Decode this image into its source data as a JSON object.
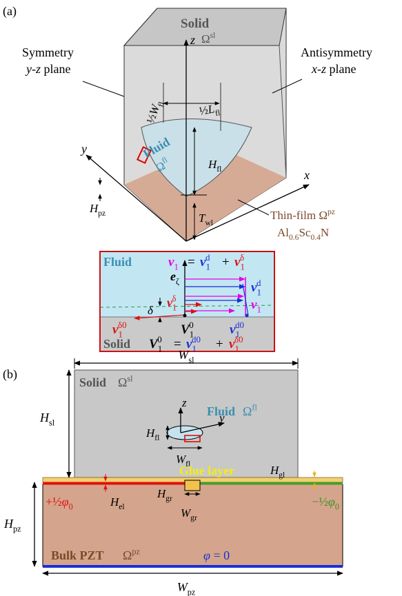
{
  "panel_a": {
    "label": "(a)",
    "solid_name": "Solid",
    "solid_symbol": {
      "rm": "Ω",
      "sup": "sl"
    },
    "symmetry_1": "Symmetry",
    "symmetry_2": {
      "it": "y-z",
      "rm": " plane"
    },
    "antisymmetry_1": "Antisymmetry",
    "antisymmetry_2": {
      "it": "x-z",
      "rm": " plane"
    },
    "half_w_fl": {
      "rm": "½",
      "it": "W",
      "sub": "fl"
    },
    "half_l_fl": {
      "rm": "½",
      "it": "L",
      "sub": "fl"
    },
    "fluid_name": "Fluid",
    "fluid_symbol": {
      "rm": "Ω",
      "sup": "fl"
    },
    "h_fl": {
      "it": "H",
      "sub": "fl"
    },
    "axis_x": {
      "it": "x"
    },
    "axis_y": {
      "it": "y"
    },
    "axis_z": {
      "it": "z"
    },
    "h_pz": {
      "it": "H",
      "sub": "pz"
    },
    "t_wl": {
      "it": "T",
      "sub": "wl"
    },
    "thin_film": {
      "rm": "Thin-film Ω",
      "sup": "pz"
    },
    "material": {
      "rm": "Al",
      "sub1": "0.6",
      "rm2": "Sc",
      "sub2": "0.4",
      "rm3": "N"
    }
  },
  "inset": {
    "fluid": "Fluid",
    "eq_lhs": {
      "bf": "v",
      "sub": "1"
    },
    "eq_sign": "=",
    "eq_vd": {
      "bf": "v",
      "sub": "1",
      "sup": "d"
    },
    "eq_plus": "+",
    "eq_vdelta": {
      "bf": "v",
      "sub": "1",
      "sup": "δ"
    },
    "e_zeta": {
      "bf": "e",
      "sub": "ζ"
    },
    "v_d": {
      "bf": "v",
      "sub": "1",
      "sup": "d"
    },
    "v_delta": {
      "bf": "v",
      "sub": "1",
      "sup": "δ"
    },
    "v_1": {
      "bf": "v",
      "sub": "1"
    },
    "delta": {
      "it": "δ"
    },
    "v_delta0": {
      "bf": "v",
      "sub": "1",
      "sup": "δ0"
    },
    "V_10": {
      "bf": "V",
      "sub": "1",
      "sup": "0"
    },
    "v_d0": {
      "bf": "v",
      "sub": "1",
      "sup": "d0"
    },
    "solid": "Solid",
    "bot_V10": {
      "bf": "V",
      "sub": "1",
      "sup": "0"
    },
    "bot_sign": "=",
    "bot_vd0": {
      "bf": "v",
      "sub": "1",
      "sup": "d0"
    },
    "bot_plus": "+",
    "bot_vdelta0": {
      "bf": "v",
      "sub": "1",
      "sup": "δ0"
    }
  },
  "panel_b": {
    "label": "(b)",
    "w_sl": {
      "it": "W",
      "sub": "sl"
    },
    "solid_name": "Solid",
    "solid_symbol": {
      "rm": "Ω",
      "sup": "sl"
    },
    "axis_z": {
      "it": "z"
    },
    "axis_y": {
      "it": "y"
    },
    "fluid_name": "Fluid",
    "fluid_symbol": {
      "rm": "Ω",
      "sup": "fl"
    },
    "h_sl": {
      "it": "H",
      "sub": "sl"
    },
    "h_fl": {
      "it": "H",
      "sub": "fl"
    },
    "w_fl": {
      "it": "W",
      "sub": "fl"
    },
    "glue": "Glue layer",
    "h_gl": {
      "it": "H",
      "sub": "gl"
    },
    "plus_phi": {
      "rm": "+½",
      "it": "φ",
      "sub": "0"
    },
    "h_el": {
      "it": "H",
      "sub": "el"
    },
    "h_gr": {
      "it": "H",
      "sub": "gr"
    },
    "w_gr": {
      "it": "W",
      "sub": "gr"
    },
    "minus_phi": {
      "rm": "−½",
      "it": "φ",
      "sub": "0"
    },
    "h_pz": {
      "it": "H",
      "sub": "pz"
    },
    "bulk_name": "Bulk PZT",
    "bulk_symbol": {
      "rm": "Ω",
      "sup": "pz"
    },
    "phi_zero": {
      "it": "φ",
      "rm": " = 0"
    },
    "w_pz": {
      "it": "W",
      "sub": "pz"
    }
  }
}
